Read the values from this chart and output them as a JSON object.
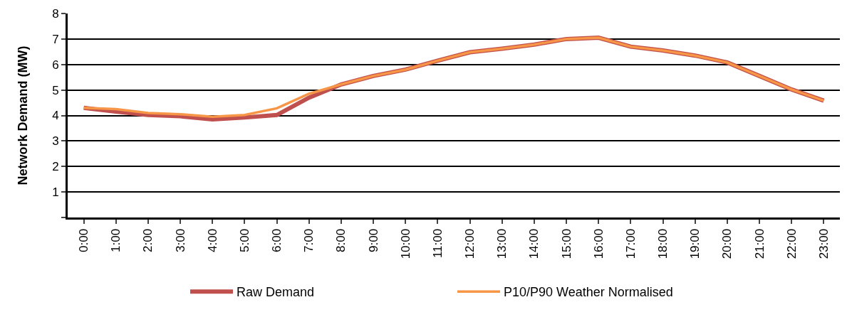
{
  "chart_data": {
    "type": "line",
    "ylabel": "Network Demand (MW)",
    "categories": [
      "0:00",
      "1:00",
      "2:00",
      "3:00",
      "4:00",
      "5:00",
      "6:00",
      "7:00",
      "8:00",
      "9:00",
      "10:00",
      "11:00",
      "12:00",
      "13:00",
      "14:00",
      "15:00",
      "16:00",
      "17:00",
      "18:00",
      "19:00",
      "20:00",
      "21:00",
      "22:00",
      "23:00"
    ],
    "series": [
      {
        "name": "Raw Demand",
        "color": "#c0504d",
        "values": [
          4.3,
          4.15,
          4.02,
          3.97,
          3.85,
          3.92,
          4.02,
          4.7,
          5.22,
          5.55,
          5.8,
          6.15,
          6.48,
          6.62,
          6.78,
          7.0,
          7.05,
          6.7,
          6.55,
          6.35,
          6.08,
          5.55,
          5.02,
          4.58
        ]
      },
      {
        "name": "P10/P90 Weather Normalised",
        "color": "#f79646",
        "values": [
          4.3,
          4.25,
          4.1,
          4.05,
          3.95,
          4.02,
          4.28,
          4.85,
          5.22,
          5.55,
          5.8,
          6.15,
          6.48,
          6.62,
          6.78,
          7.0,
          7.05,
          6.7,
          6.55,
          6.35,
          6.08,
          5.55,
          5.02,
          4.58
        ]
      }
    ],
    "ylim": [
      0,
      8
    ],
    "yticks": [
      {
        "value": 0,
        "label": null
      },
      1,
      2,
      3,
      4,
      5,
      6,
      7,
      8
    ],
    "grid": "y",
    "legend": "bottom",
    "marker": "none",
    "line_style": "solid"
  }
}
